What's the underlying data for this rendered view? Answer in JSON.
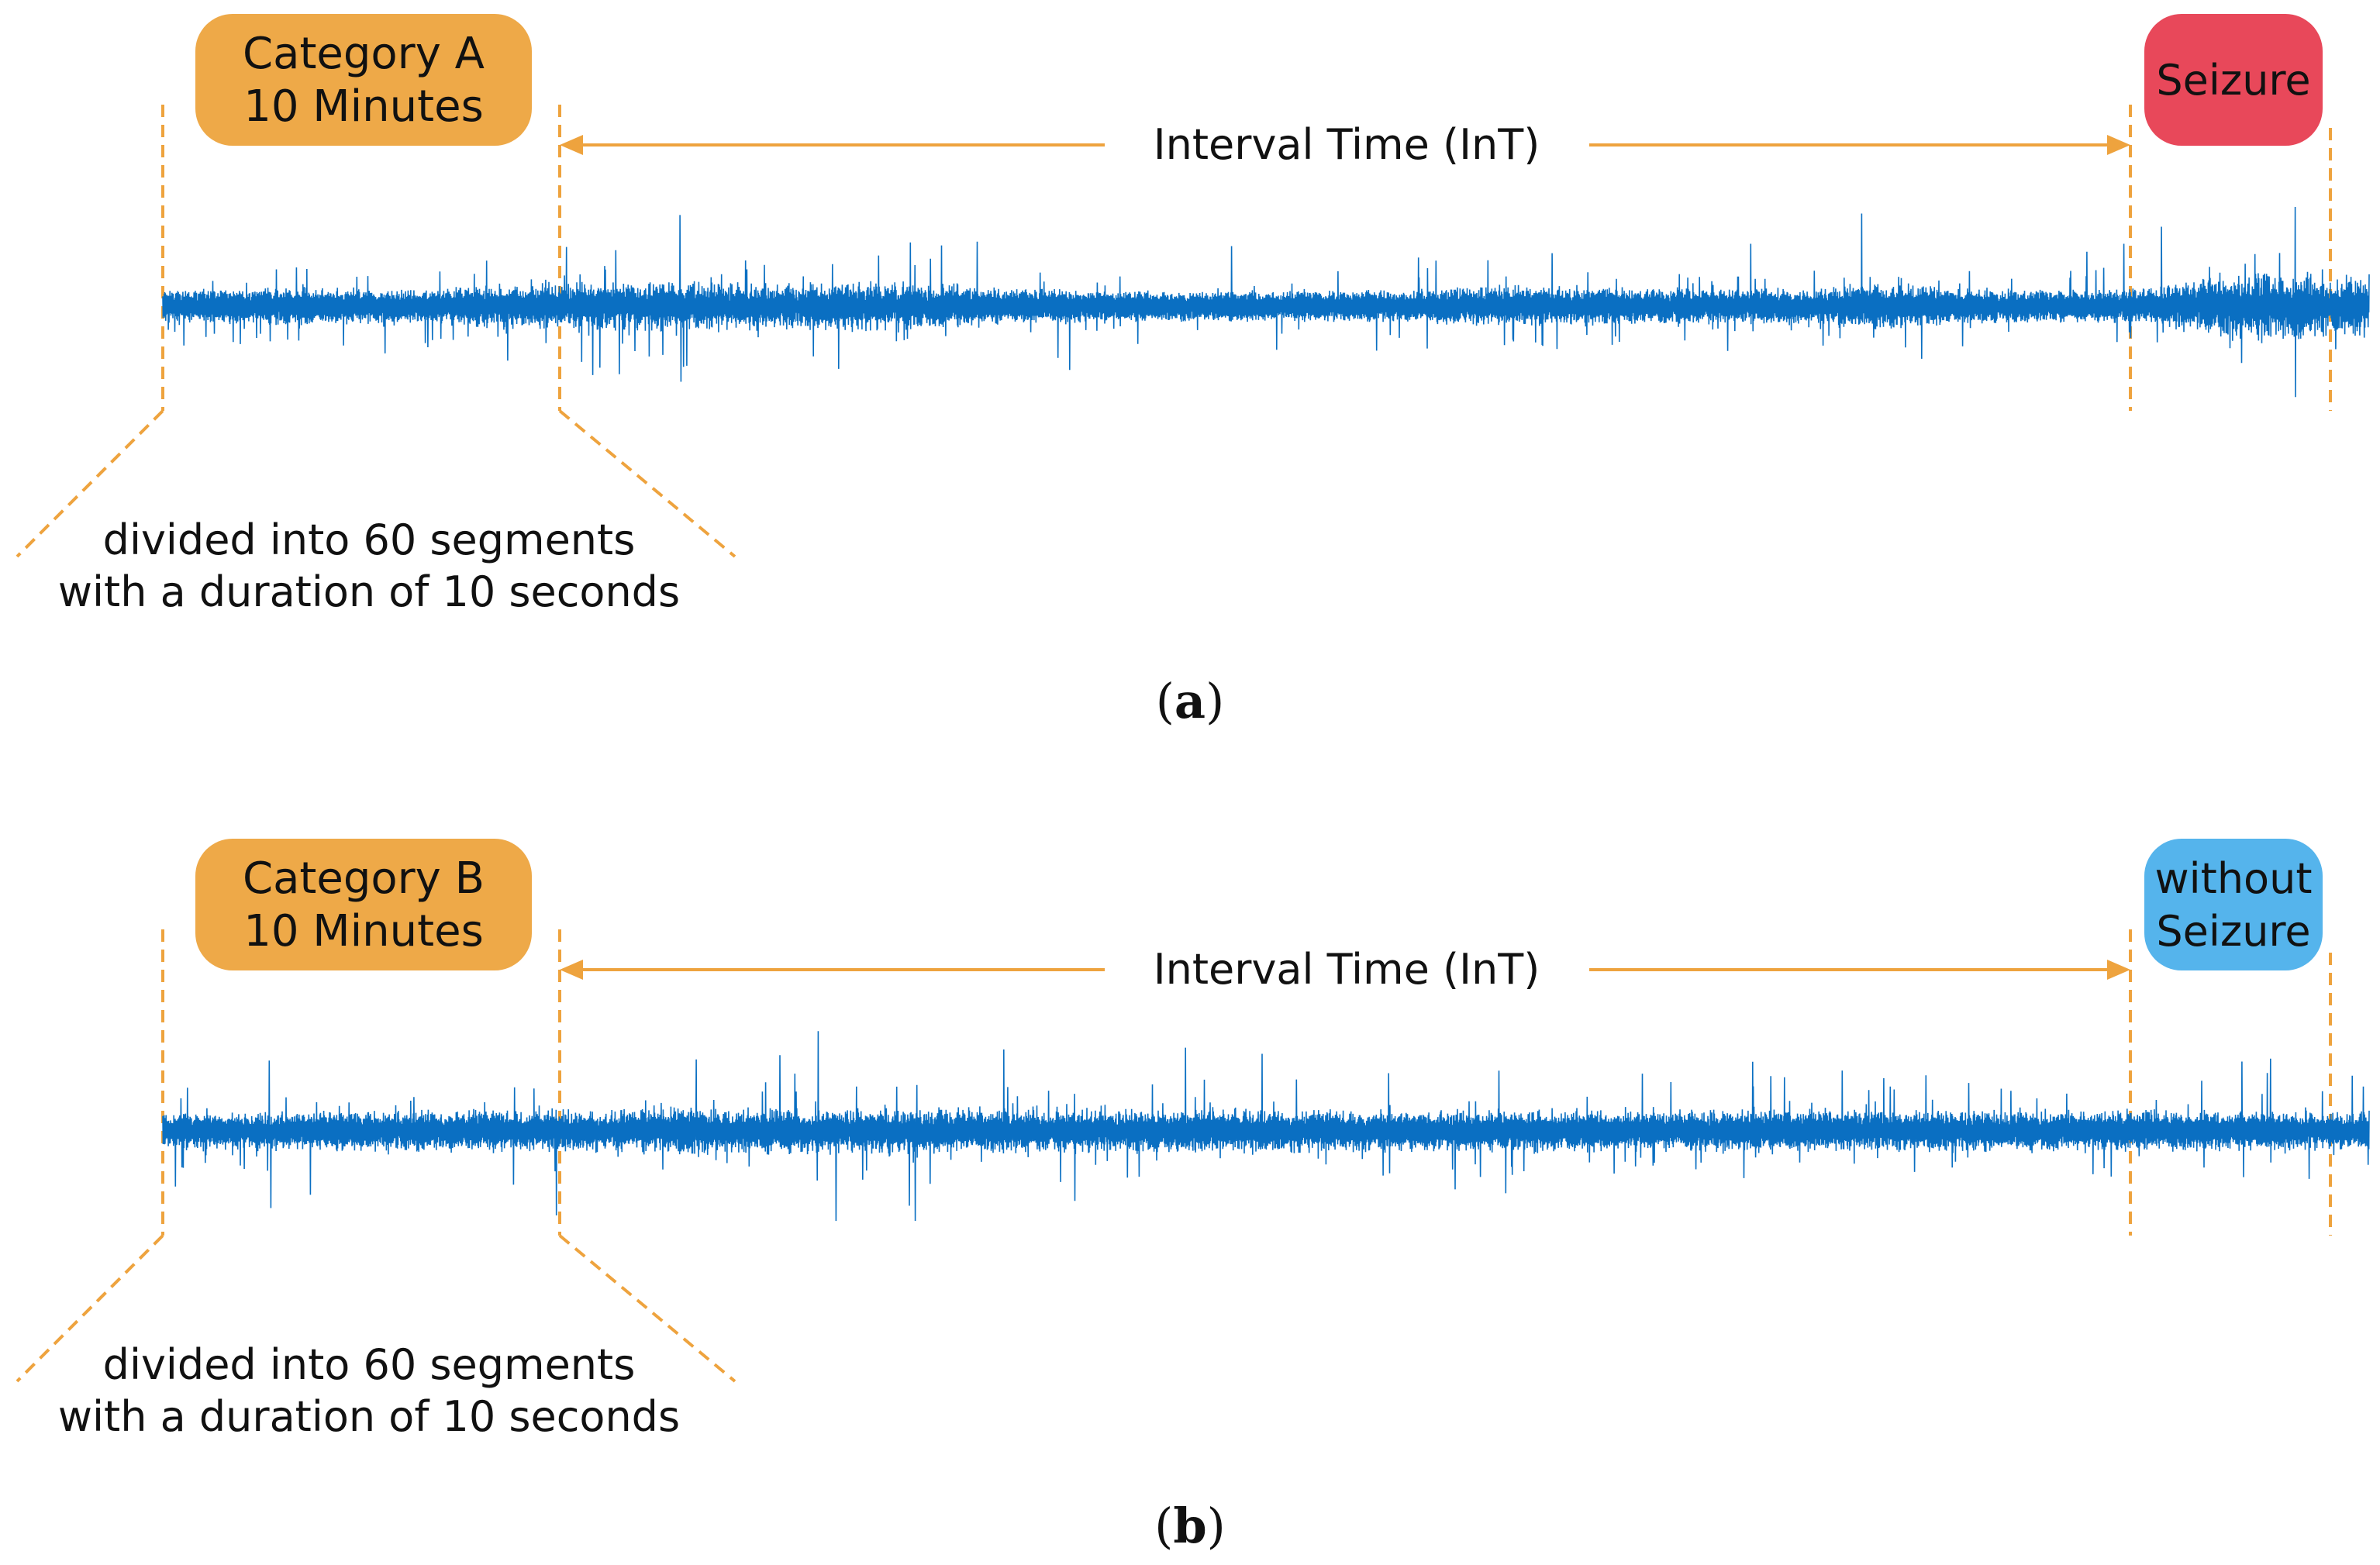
{
  "colors": {
    "signal": "#0a6fc2",
    "guide": "#eea33e",
    "category_box": "#eea948",
    "seizure_box": "#e8485a",
    "no_seizure_box": "#55b4ec",
    "text": "#111111"
  },
  "panels": [
    {
      "id": "a",
      "category_line1": "Category A",
      "category_line2": "10 Minutes",
      "interval_label": "Interval Time (InT)",
      "event_lines": [
        "Seizure"
      ],
      "event_kind": "seizure",
      "segments_line1": "divided into 60 segments",
      "segments_line2": "with a duration of 10 seconds",
      "caption": "a",
      "signal_seed": 7,
      "signal_activity": [
        0.35,
        0.6,
        0.4,
        0.9,
        1.0,
        0.85,
        1.0,
        0.5,
        0.35,
        0.3,
        0.35,
        0.75,
        0.5,
        0.45,
        0.8,
        0.45,
        0.4,
        1.6,
        1.4
      ]
    },
    {
      "id": "b",
      "category_line1": "Category B",
      "category_line2": "10 Minutes",
      "interval_label": "Interval Time (InT)",
      "event_lines": [
        "without",
        "Seizure"
      ],
      "event_kind": "no-seizure",
      "segments_line1": "divided into 60 segments",
      "segments_line2": "with a duration of 10 seconds",
      "caption": "b",
      "signal_seed": 19,
      "signal_activity": [
        0.55,
        0.6,
        0.75,
        0.65,
        0.9,
        0.85,
        0.9,
        0.8,
        0.75,
        0.8,
        0.7,
        0.75,
        0.7,
        0.8,
        0.7,
        0.7,
        0.75,
        0.6,
        0.55
      ]
    }
  ]
}
